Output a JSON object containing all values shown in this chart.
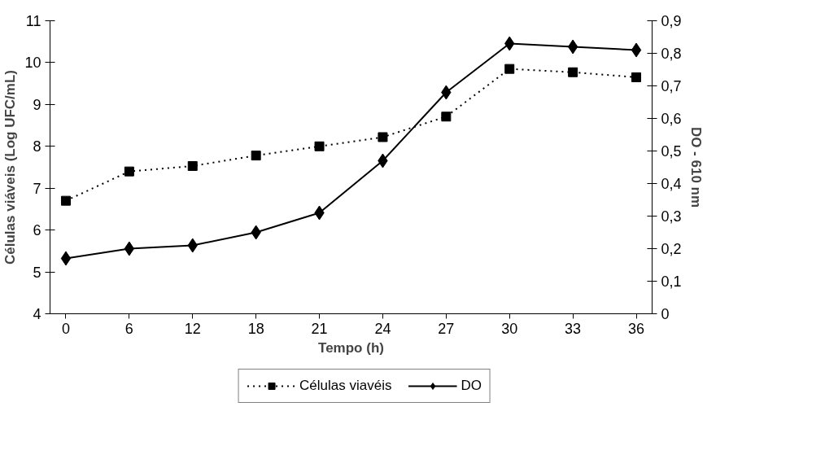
{
  "chart_data": {
    "type": "line",
    "xlabel": "Tempo (h)",
    "ylabel": "Células viáveis (Log UFC/mL)",
    "y2label": "DO - 610 nm",
    "categories": [
      "0",
      "6",
      "12",
      "18",
      "21",
      "24",
      "27",
      "30",
      "33",
      "36"
    ],
    "ylim": [
      4,
      11
    ],
    "yticks": [
      4,
      5,
      6,
      7,
      8,
      9,
      10,
      11
    ],
    "y2lim": [
      0,
      0.9
    ],
    "y2ticks": [
      0,
      {
        "value": 0.1,
        "label": "0,1"
      },
      {
        "value": 0.2,
        "label": "0,2"
      },
      {
        "value": 0.3,
        "label": "0,3"
      },
      {
        "value": 0.4,
        "label": "0,4"
      },
      {
        "value": 0.5,
        "label": "0,5"
      },
      {
        "value": 0.6,
        "label": "0,6"
      },
      {
        "value": 0.7,
        "label": "0,7"
      },
      {
        "value": 0.8,
        "label": "0,8"
      },
      {
        "value": 0.9,
        "label": "0,9"
      }
    ],
    "grid": false,
    "legend": "bottom",
    "series": [
      {
        "name": "Células viavéis",
        "color": "#000000",
        "marker": "square",
        "line_style": "dotted",
        "values": [
          6.7,
          7.4,
          7.53,
          7.78,
          8.0,
          8.22,
          8.71,
          9.85,
          9.77,
          9.65
        ]
      },
      {
        "name": "DO",
        "color": "#000000",
        "marker": "diamond",
        "line_style": "solid",
        "axis": "y2",
        "values": [
          0.17,
          0.2,
          0.21,
          0.25,
          0.31,
          0.47,
          0.68,
          0.83,
          0.82,
          0.81
        ]
      }
    ]
  }
}
